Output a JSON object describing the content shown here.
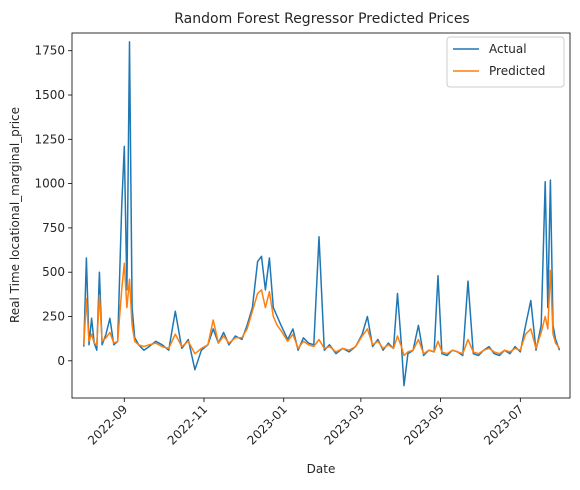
{
  "chart_data": {
    "type": "line",
    "title": "Random Forest Regressor Predicted Prices",
    "xlabel": "Date",
    "ylabel": "Real Time locational_marginal_price",
    "x_range": [
      "2022-07-23",
      "2023-08-08"
    ],
    "ylim": [
      -210,
      1850
    ],
    "y_ticks": [
      0,
      250,
      500,
      750,
      1000,
      1250,
      1500,
      1750
    ],
    "x_ticks": [
      "2022-09",
      "2022-11",
      "2023-01",
      "2023-03",
      "2023-05",
      "2023-07"
    ],
    "legend_position": "top-right",
    "grid": false,
    "series": [
      {
        "name": "Actual",
        "color": "#1f77b4",
        "points": [
          [
            "2022-08-01",
            80
          ],
          [
            "2022-08-03",
            580
          ],
          [
            "2022-08-05",
            90
          ],
          [
            "2022-08-07",
            240
          ],
          [
            "2022-08-09",
            100
          ],
          [
            "2022-08-11",
            60
          ],
          [
            "2022-08-13",
            500
          ],
          [
            "2022-08-15",
            90
          ],
          [
            "2022-08-18",
            150
          ],
          [
            "2022-08-21",
            240
          ],
          [
            "2022-08-24",
            90
          ],
          [
            "2022-08-27",
            110
          ],
          [
            "2022-08-30",
            870
          ],
          [
            "2022-09-01",
            1210
          ],
          [
            "2022-09-03",
            400
          ],
          [
            "2022-09-05",
            1800
          ],
          [
            "2022-09-07",
            300
          ],
          [
            "2022-09-09",
            130
          ],
          [
            "2022-09-12",
            90
          ],
          [
            "2022-09-16",
            60
          ],
          [
            "2022-09-20",
            80
          ],
          [
            "2022-09-25",
            110
          ],
          [
            "2022-09-30",
            90
          ],
          [
            "2022-10-05",
            60
          ],
          [
            "2022-10-10",
            280
          ],
          [
            "2022-10-15",
            70
          ],
          [
            "2022-10-20",
            120
          ],
          [
            "2022-10-25",
            -50
          ],
          [
            "2022-10-30",
            60
          ],
          [
            "2022-11-04",
            90
          ],
          [
            "2022-11-08",
            180
          ],
          [
            "2022-11-12",
            100
          ],
          [
            "2022-11-16",
            160
          ],
          [
            "2022-11-20",
            90
          ],
          [
            "2022-11-25",
            140
          ],
          [
            "2022-11-30",
            120
          ],
          [
            "2022-12-04",
            200
          ],
          [
            "2022-12-08",
            300
          ],
          [
            "2022-12-12",
            560
          ],
          [
            "2022-12-15",
            590
          ],
          [
            "2022-12-18",
            400
          ],
          [
            "2022-12-21",
            580
          ],
          [
            "2022-12-24",
            300
          ],
          [
            "2022-12-27",
            250
          ],
          [
            "2022-12-30",
            200
          ],
          [
            "2023-01-04",
            120
          ],
          [
            "2023-01-08",
            180
          ],
          [
            "2023-01-12",
            60
          ],
          [
            "2023-01-16",
            130
          ],
          [
            "2023-01-20",
            100
          ],
          [
            "2023-01-24",
            90
          ],
          [
            "2023-01-28",
            700
          ],
          [
            "2023-02-01",
            60
          ],
          [
            "2023-02-05",
            90
          ],
          [
            "2023-02-10",
            40
          ],
          [
            "2023-02-15",
            70
          ],
          [
            "2023-02-20",
            50
          ],
          [
            "2023-02-25",
            80
          ],
          [
            "2023-03-02",
            150
          ],
          [
            "2023-03-06",
            250
          ],
          [
            "2023-03-10",
            80
          ],
          [
            "2023-03-14",
            120
          ],
          [
            "2023-03-18",
            60
          ],
          [
            "2023-03-22",
            100
          ],
          [
            "2023-03-26",
            70
          ],
          [
            "2023-03-29",
            380
          ],
          [
            "2023-04-01",
            90
          ],
          [
            "2023-04-03",
            -140
          ],
          [
            "2023-04-06",
            40
          ],
          [
            "2023-04-10",
            60
          ],
          [
            "2023-04-14",
            200
          ],
          [
            "2023-04-18",
            30
          ],
          [
            "2023-04-22",
            60
          ],
          [
            "2023-04-26",
            50
          ],
          [
            "2023-04-29",
            480
          ],
          [
            "2023-05-02",
            40
          ],
          [
            "2023-05-06",
            30
          ],
          [
            "2023-05-10",
            60
          ],
          [
            "2023-05-14",
            50
          ],
          [
            "2023-05-18",
            30
          ],
          [
            "2023-05-22",
            450
          ],
          [
            "2023-05-26",
            40
          ],
          [
            "2023-05-30",
            30
          ],
          [
            "2023-06-03",
            60
          ],
          [
            "2023-06-07",
            80
          ],
          [
            "2023-06-11",
            40
          ],
          [
            "2023-06-15",
            30
          ],
          [
            "2023-06-19",
            60
          ],
          [
            "2023-06-23",
            40
          ],
          [
            "2023-06-27",
            80
          ],
          [
            "2023-07-01",
            50
          ],
          [
            "2023-07-05",
            200
          ],
          [
            "2023-07-09",
            340
          ],
          [
            "2023-07-13",
            60
          ],
          [
            "2023-07-17",
            200
          ],
          [
            "2023-07-20",
            1010
          ],
          [
            "2023-07-22",
            300
          ],
          [
            "2023-07-24",
            1020
          ],
          [
            "2023-07-26",
            200
          ],
          [
            "2023-07-28",
            120
          ],
          [
            "2023-07-31",
            60
          ]
        ]
      },
      {
        "name": "Predicted",
        "color": "#ff7f0e",
        "points": [
          [
            "2022-08-01",
            90
          ],
          [
            "2022-08-03",
            350
          ],
          [
            "2022-08-05",
            110
          ],
          [
            "2022-08-07",
            150
          ],
          [
            "2022-08-09",
            100
          ],
          [
            "2022-08-11",
            90
          ],
          [
            "2022-08-13",
            370
          ],
          [
            "2022-08-15",
            110
          ],
          [
            "2022-08-18",
            130
          ],
          [
            "2022-08-21",
            160
          ],
          [
            "2022-08-24",
            100
          ],
          [
            "2022-08-27",
            110
          ],
          [
            "2022-08-30",
            400
          ],
          [
            "2022-09-01",
            550
          ],
          [
            "2022-09-03",
            300
          ],
          [
            "2022-09-05",
            460
          ],
          [
            "2022-09-07",
            200
          ],
          [
            "2022-09-09",
            110
          ],
          [
            "2022-09-12",
            90
          ],
          [
            "2022-09-16",
            80
          ],
          [
            "2022-09-20",
            90
          ],
          [
            "2022-09-25",
            100
          ],
          [
            "2022-09-30",
            80
          ],
          [
            "2022-10-05",
            70
          ],
          [
            "2022-10-10",
            150
          ],
          [
            "2022-10-15",
            80
          ],
          [
            "2022-10-20",
            110
          ],
          [
            "2022-10-25",
            40
          ],
          [
            "2022-10-30",
            70
          ],
          [
            "2022-11-04",
            90
          ],
          [
            "2022-11-08",
            230
          ],
          [
            "2022-11-12",
            100
          ],
          [
            "2022-11-16",
            140
          ],
          [
            "2022-11-20",
            100
          ],
          [
            "2022-11-25",
            130
          ],
          [
            "2022-11-30",
            130
          ],
          [
            "2022-12-04",
            180
          ],
          [
            "2022-12-08",
            280
          ],
          [
            "2022-12-12",
            380
          ],
          [
            "2022-12-15",
            400
          ],
          [
            "2022-12-18",
            300
          ],
          [
            "2022-12-21",
            390
          ],
          [
            "2022-12-24",
            250
          ],
          [
            "2022-12-27",
            200
          ],
          [
            "2022-12-30",
            170
          ],
          [
            "2023-01-04",
            110
          ],
          [
            "2023-01-08",
            150
          ],
          [
            "2023-01-12",
            70
          ],
          [
            "2023-01-16",
            110
          ],
          [
            "2023-01-20",
            90
          ],
          [
            "2023-01-24",
            80
          ],
          [
            "2023-01-28",
            120
          ],
          [
            "2023-02-01",
            70
          ],
          [
            "2023-02-05",
            80
          ],
          [
            "2023-02-10",
            50
          ],
          [
            "2023-02-15",
            70
          ],
          [
            "2023-02-20",
            60
          ],
          [
            "2023-02-25",
            80
          ],
          [
            "2023-03-02",
            140
          ],
          [
            "2023-03-06",
            180
          ],
          [
            "2023-03-10",
            90
          ],
          [
            "2023-03-14",
            110
          ],
          [
            "2023-03-18",
            70
          ],
          [
            "2023-03-22",
            90
          ],
          [
            "2023-03-26",
            70
          ],
          [
            "2023-03-29",
            140
          ],
          [
            "2023-04-01",
            80
          ],
          [
            "2023-04-03",
            30
          ],
          [
            "2023-04-06",
            50
          ],
          [
            "2023-04-10",
            60
          ],
          [
            "2023-04-14",
            120
          ],
          [
            "2023-04-18",
            40
          ],
          [
            "2023-04-22",
            60
          ],
          [
            "2023-04-26",
            50
          ],
          [
            "2023-04-29",
            110
          ],
          [
            "2023-05-02",
            50
          ],
          [
            "2023-05-06",
            40
          ],
          [
            "2023-05-10",
            60
          ],
          [
            "2023-05-14",
            50
          ],
          [
            "2023-05-18",
            40
          ],
          [
            "2023-05-22",
            120
          ],
          [
            "2023-05-26",
            50
          ],
          [
            "2023-05-30",
            40
          ],
          [
            "2023-06-03",
            60
          ],
          [
            "2023-06-07",
            70
          ],
          [
            "2023-06-11",
            50
          ],
          [
            "2023-06-15",
            40
          ],
          [
            "2023-06-19",
            60
          ],
          [
            "2023-06-23",
            50
          ],
          [
            "2023-06-27",
            70
          ],
          [
            "2023-07-01",
            60
          ],
          [
            "2023-07-05",
            150
          ],
          [
            "2023-07-09",
            180
          ],
          [
            "2023-07-13",
            70
          ],
          [
            "2023-07-17",
            160
          ],
          [
            "2023-07-20",
            250
          ],
          [
            "2023-07-22",
            180
          ],
          [
            "2023-07-24",
            510
          ],
          [
            "2023-07-26",
            150
          ],
          [
            "2023-07-28",
            100
          ],
          [
            "2023-07-31",
            70
          ]
        ]
      }
    ]
  }
}
